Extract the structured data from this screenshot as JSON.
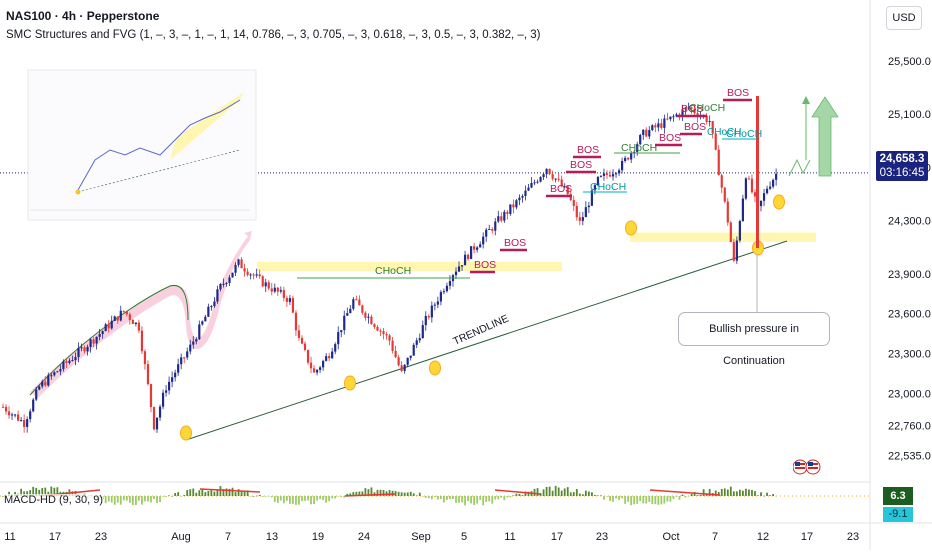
{
  "header": {
    "title": "NAS100 · 4h · Pepperstone",
    "indicator": "SMC Structures and FVG (1, –, 3, –, 1, –, 1, 14, 0.786, –, 3, 0.705, –, 3, 0.618, –, 3, 0.5, –, 3, 0.382, –, 3)",
    "currency": "USD"
  },
  "price_tag": {
    "price": "24,658.3",
    "countdown": "03:16:45"
  },
  "annotation": {
    "note": "Bullish pressure in Continuation"
  },
  "macd": {
    "label": "MACD-HD (9, 30, 9)",
    "value1": "6.3",
    "value2": "-9.1"
  },
  "colors": {
    "bull": "#1e2a8a",
    "bear": "#e53935",
    "zone": "#fff59d",
    "bos": "#b71c5a",
    "choch_green": "#2e7d32",
    "choch_cyan": "#0097a7",
    "trendline": "#2e5e3a"
  },
  "chart_data": {
    "type": "candlestick",
    "symbol": "NAS100",
    "timeframe": "4h",
    "source": "Pepperstone",
    "y_axis": {
      "ticks": [
        25500,
        25100,
        24700,
        24300,
        23900,
        23600,
        23300,
        23000,
        22760,
        22535
      ],
      "tick_labels": [
        "25,500.0",
        "25,100.0",
        "24,700.0",
        "24,300.0",
        "23,900.0",
        "23,600.0",
        "23,300.0",
        "23,000.0",
        "22,760.0",
        "22,535.0"
      ],
      "ylim": [
        22440,
        25620
      ]
    },
    "x_axis": {
      "tick_labels": [
        "11",
        "17",
        "23",
        "Aug",
        "7",
        "13",
        "19",
        "24",
        "Sep",
        "5",
        "11",
        "17",
        "23",
        "Oct",
        "7",
        "12",
        "17",
        "23"
      ]
    },
    "current_price": 24658.3,
    "path_waypoints": [
      [
        0,
        22900
      ],
      [
        7,
        22780
      ],
      [
        12,
        23050
      ],
      [
        22,
        23250
      ],
      [
        32,
        23450
      ],
      [
        40,
        23620
      ],
      [
        45,
        23500
      ],
      [
        50,
        22760
      ],
      [
        54,
        23050
      ],
      [
        62,
        23350
      ],
      [
        72,
        23800
      ],
      [
        78,
        23980
      ],
      [
        85,
        23850
      ],
      [
        95,
        23700
      ],
      [
        98,
        23400
      ],
      [
        103,
        23150
      ],
      [
        108,
        23300
      ],
      [
        116,
        23700
      ],
      [
        122,
        23550
      ],
      [
        128,
        23400
      ],
      [
        132,
        23150
      ],
      [
        140,
        23550
      ],
      [
        148,
        23880
      ],
      [
        156,
        24100
      ],
      [
        164,
        24300
      ],
      [
        172,
        24480
      ],
      [
        180,
        24700
      ],
      [
        187,
        24500
      ],
      [
        191,
        24280
      ],
      [
        197,
        24600
      ],
      [
        205,
        24720
      ],
      [
        212,
        24950
      ],
      [
        220,
        25050
      ],
      [
        227,
        25150
      ],
      [
        234,
        25050
      ],
      [
        240,
        24300
      ],
      [
        242,
        23980
      ],
      [
        246,
        24650
      ],
      [
        250,
        24380
      ],
      [
        253,
        24550
      ],
      [
        256,
        24650
      ]
    ],
    "structure_labels": [
      {
        "text": "BOS",
        "type": "bos"
      },
      {
        "text": "BOS",
        "type": "bos"
      },
      {
        "text": "BOS",
        "type": "bos"
      },
      {
        "text": "BOS",
        "type": "bos"
      },
      {
        "text": "BOS",
        "type": "bos"
      },
      {
        "text": "BOS",
        "type": "bos"
      },
      {
        "text": "BOS",
        "type": "bos"
      },
      {
        "text": "BOS",
        "type": "bos"
      },
      {
        "text": "BOS",
        "type": "bos"
      },
      {
        "text": "CHoCH",
        "type": "choch"
      },
      {
        "text": "CHoCH",
        "type": "choch"
      },
      {
        "text": "CHoCH",
        "type": "choch"
      },
      {
        "text": "CHoCH",
        "type": "choch"
      },
      {
        "text": "CHoCH",
        "type": "choch"
      },
      {
        "text": "CHoCH",
        "type": "choch"
      }
    ],
    "trendline_label": "TRENDLINE",
    "zones": [
      {
        "y_top": 23990,
        "y_bottom": 23920
      },
      {
        "y_top": 24210,
        "y_bottom": 24140
      }
    ],
    "macd_histogram_range": [
      -12,
      8
    ]
  }
}
